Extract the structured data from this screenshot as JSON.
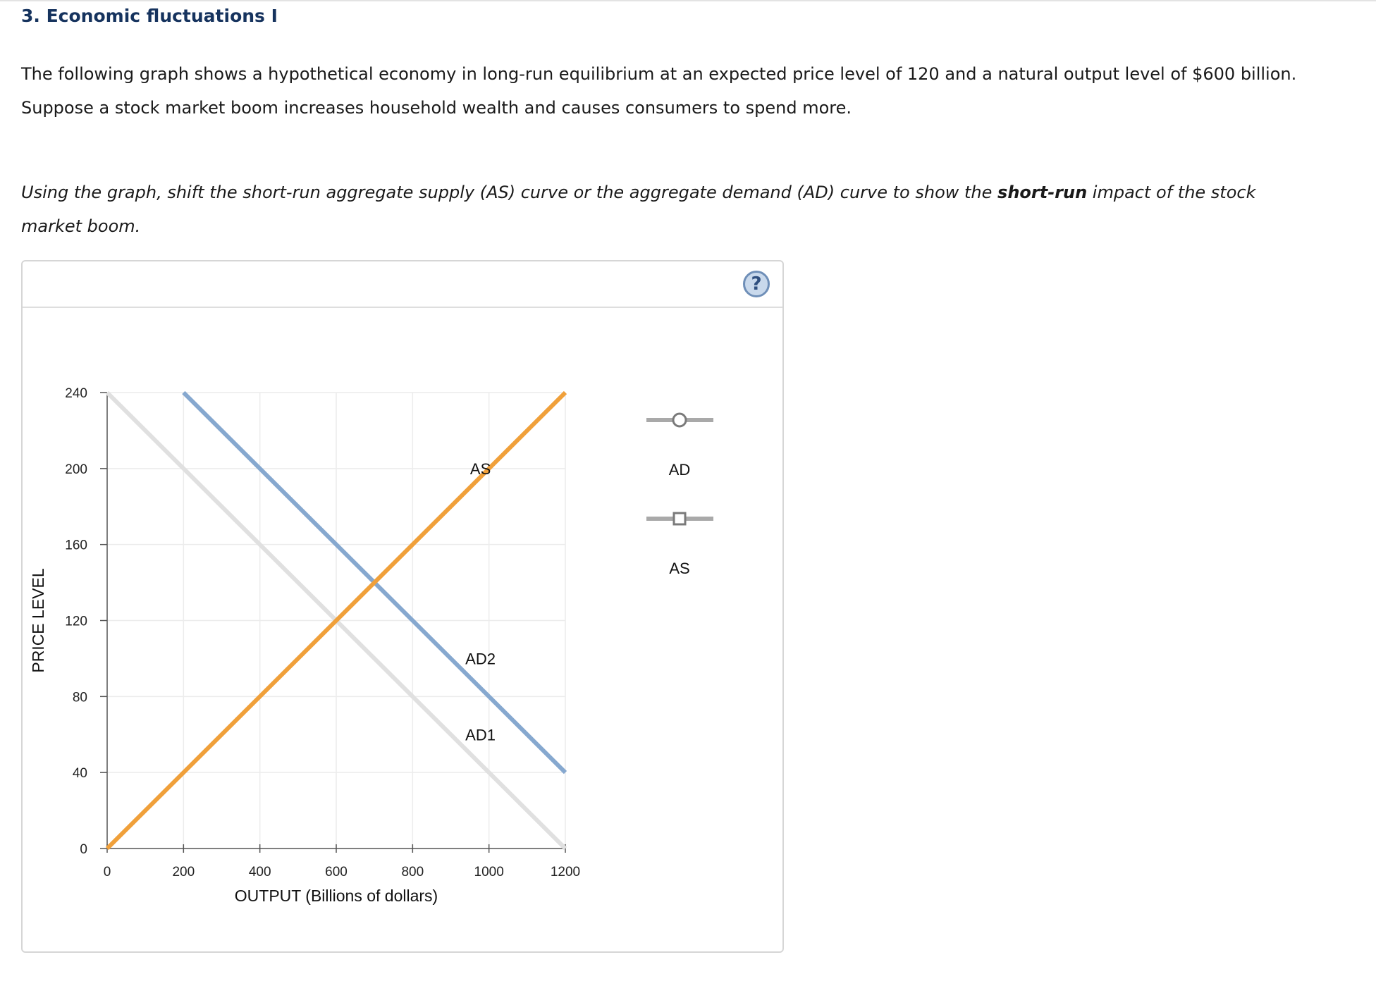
{
  "question": {
    "title": "3. Economic fluctuations I",
    "paragraph1": "The following graph shows a hypothetical economy in long-run equilibrium at an expected price level of 120 and a natural output level of $600 billion. Suppose a stock market boom increases household wealth and causes consumers to spend more.",
    "instruction_prefix": "Using the graph, shift the short-run aggregate supply (AS) curve or the aggregate demand (AD) curve to show the ",
    "instruction_bold": "short-run",
    "instruction_suffix": " impact of the stock market boom."
  },
  "panel": {
    "help_label": "?"
  },
  "legend": {
    "items": [
      {
        "label": "AD",
        "marker": "circle-marker"
      },
      {
        "label": "AS",
        "marker": "square-marker"
      }
    ]
  },
  "chart_data": {
    "type": "line",
    "xlabel": "OUTPUT (Billions of dollars)",
    "ylabel": "PRICE LEVEL",
    "xlim": [
      0,
      1200
    ],
    "ylim": [
      0,
      240
    ],
    "x_ticks": [
      0,
      200,
      400,
      600,
      800,
      1000,
      1200
    ],
    "y_ticks": [
      0,
      40,
      80,
      120,
      160,
      200,
      240
    ],
    "grid": true,
    "series": [
      {
        "name": "AD1",
        "color": "#e0e0e0",
        "points": [
          [
            0,
            240
          ],
          [
            1200,
            0
          ]
        ],
        "label_at": [
          950,
          60
        ]
      },
      {
        "name": "AD2",
        "color": "#86a8cf",
        "points": [
          [
            200,
            240
          ],
          [
            1200,
            40
          ]
        ],
        "label_at": [
          950,
          100
        ]
      },
      {
        "name": "AS",
        "color": "#f0a03a",
        "points": [
          [
            0,
            0
          ],
          [
            1200,
            240
          ]
        ],
        "label_at": [
          950,
          200
        ]
      }
    ]
  }
}
